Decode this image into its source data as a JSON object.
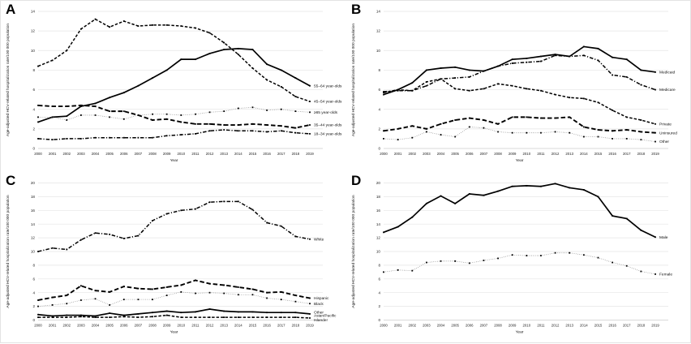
{
  "figure": {
    "xlabel": "Year",
    "ylabel": "Age-adjusted HCV-related hospitalization rate/100 000 population",
    "line_color": "#000000",
    "grid_color": "#e5e5e5",
    "zero_line_color": "#cccccc"
  },
  "chart_data": [
    {
      "panel_label": "A",
      "type": "line",
      "title": "",
      "xlabel": "Year",
      "ylabel": "Age-adjusted HCV-related hospitalization rate/100 000 population",
      "x": [
        2000,
        2001,
        2002,
        2003,
        2004,
        2005,
        2006,
        2007,
        2008,
        2009,
        2010,
        2011,
        2012,
        2013,
        2014,
        2015,
        2016,
        2017,
        2018,
        2019
      ],
      "ylim": [
        0,
        14
      ],
      "yticks": [
        0,
        2,
        4,
        6,
        8,
        10,
        12,
        14
      ],
      "grid": true,
      "legend_position": "right-end-labels",
      "series": [
        {
          "name": "55–64 year-olds",
          "style": "solid",
          "values": [
            2.7,
            3.2,
            3.3,
            4.3,
            4.6,
            5.2,
            5.7,
            6.4,
            7.2,
            8.0,
            9.1,
            9.1,
            9.7,
            10.1,
            10.2,
            10.1,
            8.6,
            8.0,
            7.2,
            6.4
          ]
        },
        {
          "name": "45–54 year-olds",
          "style": "dash",
          "values": [
            8.4,
            9.0,
            10.0,
            12.2,
            13.2,
            12.4,
            13.0,
            12.5,
            12.6,
            12.6,
            12.5,
            12.3,
            11.8,
            10.8,
            9.6,
            8.2,
            7.0,
            6.3,
            5.3,
            4.8
          ]
        },
        {
          "name": "≥65 year-olds",
          "style": "dot",
          "values": [
            3.2,
            3.2,
            2.9,
            3.4,
            3.4,
            3.2,
            3.0,
            3.4,
            3.5,
            3.5,
            3.4,
            3.5,
            3.7,
            3.8,
            4.1,
            4.2,
            3.9,
            4.0,
            3.8,
            3.7
          ]
        },
        {
          "name": "35–44 year-olds",
          "style": "longdash",
          "values": [
            4.4,
            4.3,
            4.3,
            4.4,
            4.3,
            3.8,
            3.8,
            3.4,
            2.9,
            3.0,
            2.7,
            2.5,
            2.5,
            2.4,
            2.4,
            2.5,
            2.4,
            2.3,
            2.1,
            2.4
          ]
        },
        {
          "name": "18–34 year-olds",
          "style": "dashdot",
          "values": [
            1.0,
            0.9,
            1.0,
            1.0,
            1.1,
            1.1,
            1.1,
            1.1,
            1.1,
            1.3,
            1.4,
            1.5,
            1.8,
            1.9,
            1.8,
            1.8,
            1.7,
            1.8,
            1.6,
            1.5
          ]
        }
      ]
    },
    {
      "panel_label": "B",
      "type": "line",
      "title": "",
      "xlabel": "Year",
      "ylabel": "Age-adjusted HCV-related hospitalization rate/100 000 population",
      "x": [
        2000,
        2001,
        2002,
        2003,
        2004,
        2005,
        2006,
        2007,
        2008,
        2009,
        2010,
        2011,
        2012,
        2013,
        2014,
        2015,
        2016,
        2017,
        2018,
        2019
      ],
      "ylim": [
        0,
        14
      ],
      "yticks": [
        0,
        2,
        4,
        6,
        8,
        10,
        12,
        14
      ],
      "grid": true,
      "legend_position": "right-end-labels",
      "series": [
        {
          "name": "Medicaid",
          "style": "solid",
          "values": [
            5.5,
            6.0,
            6.7,
            8.0,
            8.2,
            8.3,
            8.0,
            7.9,
            8.4,
            9.1,
            9.2,
            9.4,
            9.6,
            9.4,
            10.4,
            10.2,
            9.3,
            9.1,
            8.0,
            7.8
          ]
        },
        {
          "name": "Medicare",
          "style": "dashdot",
          "values": [
            5.8,
            5.9,
            5.9,
            6.4,
            7.1,
            7.2,
            7.3,
            7.9,
            8.4,
            8.7,
            8.8,
            8.9,
            9.5,
            9.4,
            9.5,
            9.0,
            7.5,
            7.3,
            6.5,
            6.0
          ]
        },
        {
          "name": "Private",
          "style": "dash",
          "values": [
            5.7,
            6.0,
            5.9,
            6.8,
            7.1,
            6.1,
            5.9,
            6.1,
            6.6,
            6.4,
            6.1,
            5.9,
            5.5,
            5.2,
            5.1,
            4.7,
            3.9,
            3.2,
            2.9,
            2.5
          ]
        },
        {
          "name": "Uninsured",
          "style": "longdash",
          "values": [
            1.8,
            2.0,
            2.3,
            2.0,
            2.5,
            2.9,
            3.1,
            2.9,
            2.5,
            3.2,
            3.2,
            3.1,
            3.1,
            3.2,
            2.2,
            1.9,
            1.8,
            1.9,
            1.7,
            1.6
          ]
        },
        {
          "name": "Other",
          "style": "dot",
          "values": [
            1.0,
            0.9,
            1.1,
            1.7,
            1.4,
            1.2,
            2.2,
            2.1,
            1.7,
            1.6,
            1.6,
            1.6,
            1.7,
            1.6,
            1.2,
            1.2,
            1.0,
            1.0,
            0.9,
            0.7
          ]
        }
      ]
    },
    {
      "panel_label": "C",
      "type": "line",
      "title": "",
      "xlabel": "Year",
      "ylabel": "Age-adjusted HCV-related hospitalization rate/100 000 population",
      "x": [
        2000,
        2001,
        2002,
        2003,
        2004,
        2005,
        2006,
        2007,
        2008,
        2009,
        2010,
        2011,
        2012,
        2013,
        2014,
        2015,
        2016,
        2017,
        2018,
        2019
      ],
      "ylim": [
        0,
        20
      ],
      "yticks": [
        0,
        2,
        4,
        6,
        8,
        10,
        12,
        14,
        16,
        18,
        20
      ],
      "grid": true,
      "legend_position": "right-end-labels",
      "series": [
        {
          "name": "White",
          "style": "dashdot",
          "values": [
            10.0,
            10.5,
            10.3,
            11.7,
            12.7,
            12.5,
            11.9,
            12.3,
            14.5,
            15.5,
            16.0,
            16.2,
            17.2,
            17.3,
            17.3,
            16.1,
            14.2,
            13.7,
            12.2,
            11.8
          ]
        },
        {
          "name": "Hispanic",
          "style": "longdash",
          "values": [
            2.9,
            3.3,
            3.6,
            5.0,
            4.3,
            4.1,
            4.9,
            4.6,
            4.5,
            4.8,
            5.1,
            5.8,
            5.3,
            5.1,
            4.8,
            4.5,
            4.0,
            4.1,
            3.6,
            3.2
          ]
        },
        {
          "name": "Black",
          "style": "dot",
          "values": [
            2.0,
            2.2,
            2.4,
            2.9,
            3.1,
            2.2,
            3.0,
            3.0,
            3.0,
            3.6,
            4.1,
            3.9,
            4.0,
            3.9,
            3.7,
            3.7,
            3.2,
            3.0,
            2.7,
            2.4
          ]
        },
        {
          "name": "Other",
          "style": "solid",
          "label_dy": -2,
          "values": [
            0.8,
            0.6,
            0.7,
            0.7,
            0.6,
            1.0,
            0.7,
            0.9,
            1.1,
            1.3,
            1.1,
            1.2,
            1.6,
            1.3,
            1.2,
            1.2,
            1.1,
            1.1,
            1.1,
            0.9
          ]
        },
        {
          "name": "Asian/Pacific Islander",
          "style": "dash",
          "label_dy": -3,
          "label_lines": [
            "Asian/Pacific",
            "Islander"
          ],
          "values": [
            0.4,
            0.4,
            0.4,
            0.5,
            0.4,
            0.4,
            0.5,
            0.4,
            0.5,
            0.7,
            0.4,
            0.4,
            0.4,
            0.4,
            0.4,
            0.4,
            0.4,
            0.4,
            0.4,
            0.3
          ]
        }
      ]
    },
    {
      "panel_label": "D",
      "type": "line",
      "title": "",
      "xlabel": "Year",
      "ylabel": "Age-adjusted HCV-related hospitalization rate/100 000 population",
      "x": [
        2000,
        2001,
        2002,
        2003,
        2004,
        2005,
        2006,
        2007,
        2008,
        2009,
        2010,
        2011,
        2012,
        2013,
        2014,
        2015,
        2016,
        2017,
        2018,
        2019
      ],
      "ylim": [
        0,
        20
      ],
      "yticks": [
        0,
        2,
        4,
        6,
        8,
        10,
        12,
        14,
        16,
        18,
        20
      ],
      "grid": true,
      "legend_position": "right-end-labels",
      "series": [
        {
          "name": "Male",
          "style": "solid",
          "values": [
            12.8,
            13.6,
            15.0,
            17.0,
            18.1,
            17.0,
            18.4,
            18.2,
            18.8,
            19.5,
            19.6,
            19.5,
            19.9,
            19.3,
            19.0,
            18.0,
            15.2,
            14.8,
            13.1,
            12.1
          ]
        },
        {
          "name": "Female",
          "style": "dot",
          "values": [
            7.0,
            7.3,
            7.2,
            8.4,
            8.6,
            8.6,
            8.3,
            8.7,
            9.0,
            9.5,
            9.4,
            9.4,
            9.8,
            9.8,
            9.5,
            9.1,
            8.4,
            7.9,
            7.1,
            6.7
          ]
        }
      ]
    }
  ]
}
